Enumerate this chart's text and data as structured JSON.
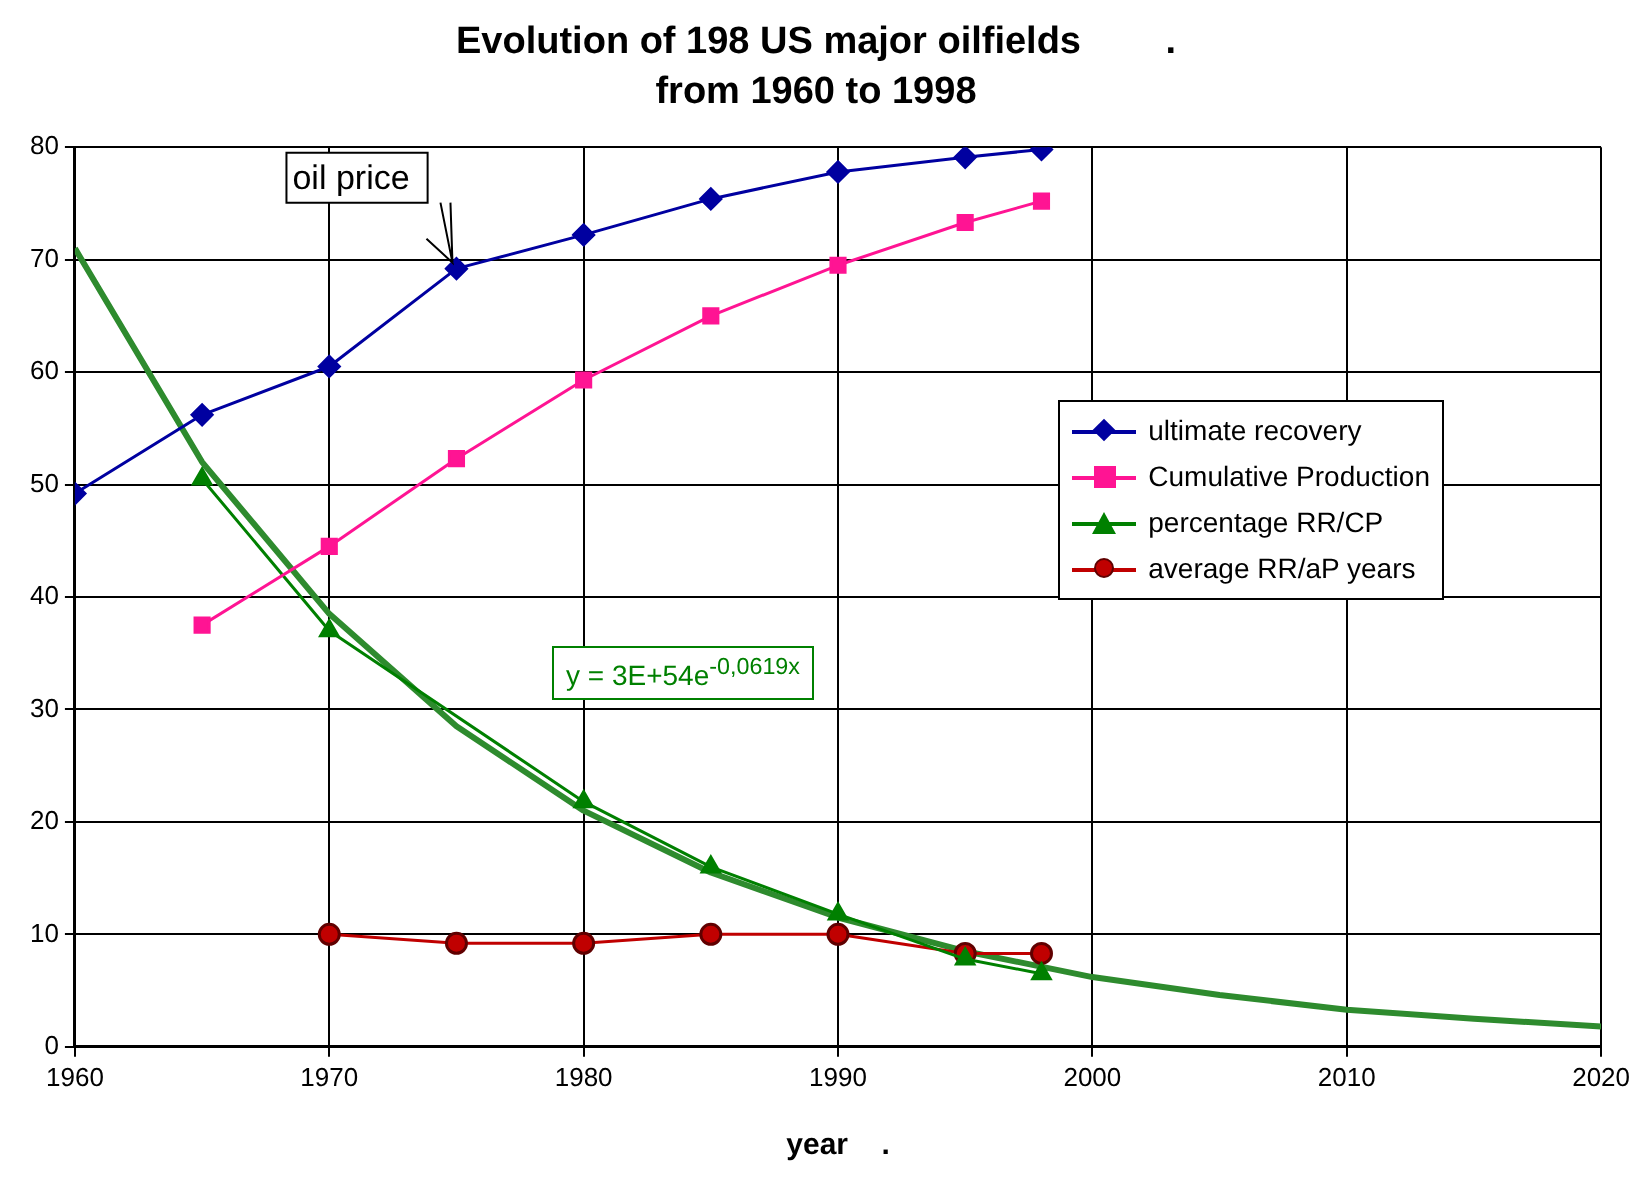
{
  "chart_data": {
    "type": "line",
    "title": "Evolution of 198 US major oilfields        .",
    "subtitle": "from 1960 to 1998",
    "xlabel": "year    .",
    "x": [
      1960,
      1965,
      1970,
      1975,
      1980,
      1985,
      1990,
      1995,
      1998
    ],
    "series": [
      {
        "name": "ultimate recovery",
        "color": "#0000a0",
        "marker": "diamond",
        "values": [
          49.2,
          56.2,
          60.5,
          69.2,
          72.2,
          75.4,
          77.8,
          79.1,
          79.8
        ]
      },
      {
        "name": "Cumulative Production",
        "color": "#ff1493",
        "marker": "square",
        "values": [
          null,
          37.5,
          44.5,
          52.3,
          59.3,
          65,
          69.5,
          73.3,
          75.2
        ]
      },
      {
        "name": "percentage RR/CP",
        "color": "#008000",
        "marker": "triangle",
        "values": [
          null,
          50.5,
          37,
          null,
          21.8,
          16,
          11.8,
          7.8,
          6.5
        ]
      },
      {
        "name": "average RR/aP years",
        "color": "#c00000",
        "marker": "circle",
        "values": [
          null,
          null,
          10,
          9.2,
          9.2,
          10,
          10,
          8.3,
          8.3
        ]
      },
      {
        "type": "line",
        "color": "#2e8b2e",
        "marker": "none",
        "x": [
          1960,
          1965,
          1970,
          1975,
          1980,
          1985,
          1990,
          1995,
          2000,
          2005,
          2010,
          2015,
          2020
        ],
        "values": [
          71,
          52,
          38.5,
          28.5,
          21,
          15.5,
          11.5,
          8.5,
          6.2,
          4.6,
          3.3,
          2.5,
          1.8
        ]
      }
    ],
    "xlim": [
      1960,
      2020
    ],
    "xticks": [
      1960,
      1970,
      1980,
      1990,
      2000,
      2010,
      2020
    ],
    "ylim": [
      0,
      80
    ],
    "yticks": [
      0,
      10,
      20,
      30,
      40,
      50,
      60,
      70,
      80
    ],
    "grid": true,
    "legend": "right",
    "annotations": [
      {
        "text": "oil price",
        "x": 1975,
        "y": 69.2
      },
      "y = 3E+54e$^{-0,0619x}$"
    ]
  }
}
